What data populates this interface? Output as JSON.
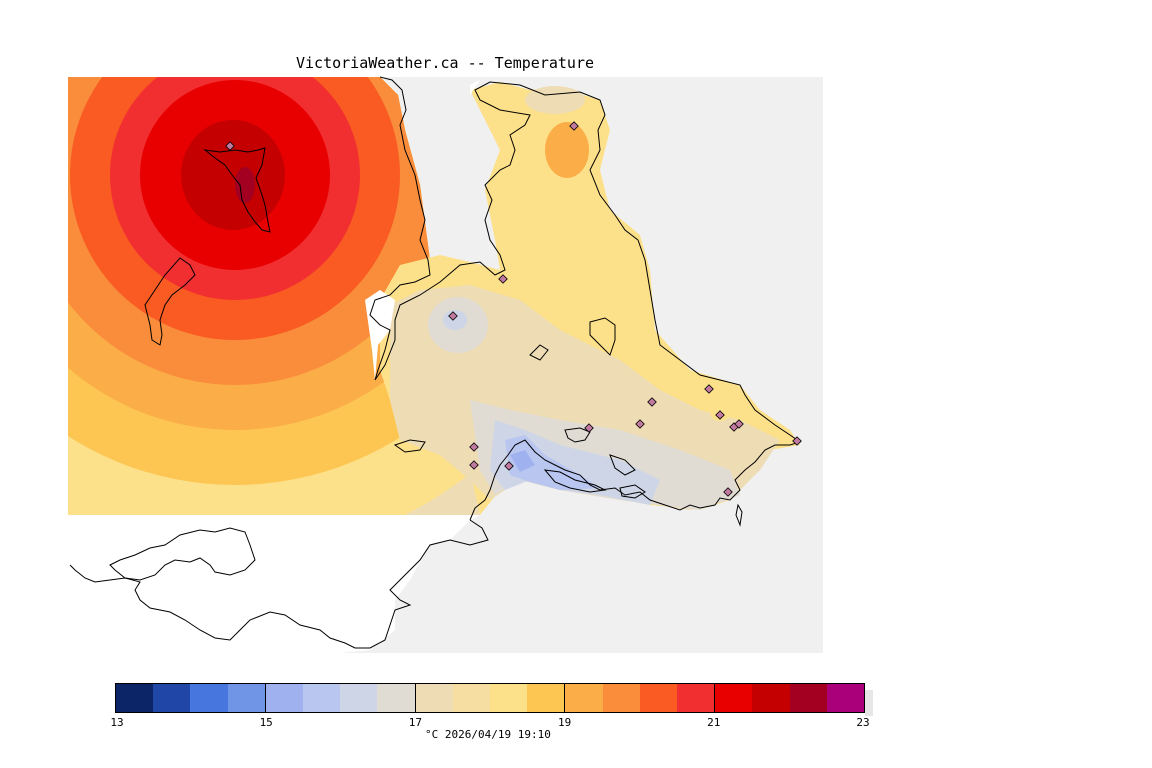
{
  "title": "VictoriaWeather.ca -- Temperature",
  "legend": {
    "colors": [
      "#0b2566",
      "#2047a8",
      "#4676de",
      "#7095e6",
      "#9fb2ef",
      "#b8c6f0",
      "#cdd5e6",
      "#e0dcd3",
      "#eedcb4",
      "#f6dea2",
      "#fde18a",
      "#fdc653",
      "#fbad48",
      "#f98d3b",
      "#f95b22",
      "#f22f30",
      "#e80000",
      "#c40000",
      "#a30021",
      "#aa007a"
    ],
    "tick_labels": [
      "13",
      "15",
      "17",
      "19",
      "21",
      "23"
    ],
    "unit_and_time": "°C  2026/04/19 19:10"
  },
  "colors": {
    "land_background": "#f0f0f0",
    "water": "#ffffff",
    "coastline": "#000000",
    "station_marker_fill": "#c0799f"
  }
}
